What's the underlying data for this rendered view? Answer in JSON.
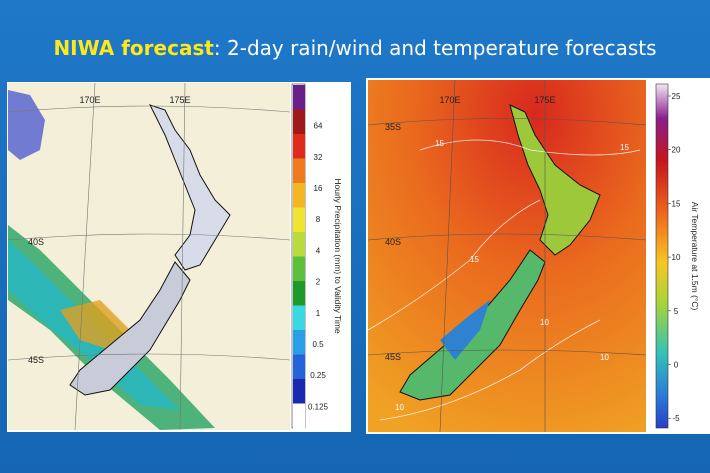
{
  "title": {
    "highlight": "NIWA forecast",
    "rest": ": 2-day rain/wind and temperature forecasts"
  },
  "left_map": {
    "lon_labels": [
      "170E",
      "175E"
    ],
    "lat_labels": [
      "40S",
      "45S"
    ],
    "colorbar": {
      "label": "Hourly Precipitation (mm) to Validity Time",
      "ticks": [
        "64",
        "32",
        "16",
        "8",
        "4",
        "2",
        "1",
        "0.5",
        "0.25",
        "0.125"
      ]
    }
  },
  "right_map": {
    "lon_labels": [
      "170E",
      "175E"
    ],
    "lat_labels": [
      "35S",
      "40S",
      "45S"
    ],
    "contour_labels": [
      "15",
      "15",
      "15",
      "10",
      "10",
      "10"
    ],
    "colorbar": {
      "label": "Air Temperature at 1.5m (°C)",
      "ticks": [
        "25",
        "20",
        "15",
        "10",
        "5",
        "0",
        "-5"
      ]
    }
  }
}
